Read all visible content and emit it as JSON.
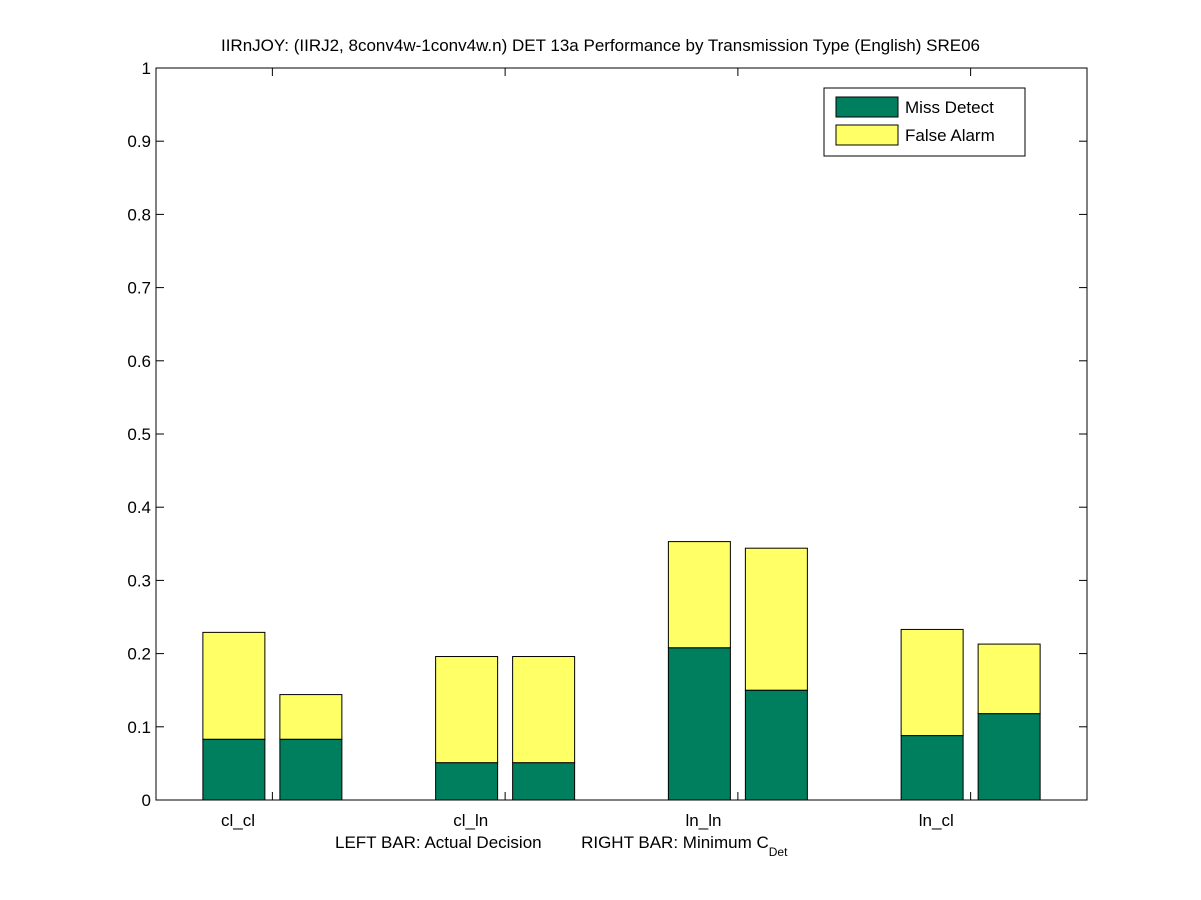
{
  "chart_data": {
    "type": "bar",
    "stacked": true,
    "title": "IIRnJOY: (IIRJ2, 8conv4w-1conv4w.n) DET 13a Performance by Transmission Type (English) SRE06",
    "xlabel_left": "LEFT BAR: Actual Decision",
    "xlabel_right": "RIGHT BAR: Minimum C",
    "xlabel_right_sub": "Det",
    "ylabel": "",
    "ylim": [
      0,
      1
    ],
    "yticks": [
      "0",
      "0.1",
      "0.2",
      "0.3",
      "0.4",
      "0.5",
      "0.6",
      "0.7",
      "0.8",
      "0.9",
      "1"
    ],
    "categories": [
      "cl_cl",
      "cl_ln",
      "ln_ln",
      "ln_cl"
    ],
    "bars_per_category": [
      "Actual Decision",
      "Minimum C_Det"
    ],
    "series": [
      {
        "name": "Miss Detect",
        "color": "#007f5f",
        "values": [
          [
            0.083,
            0.083
          ],
          [
            0.051,
            0.051
          ],
          [
            0.208,
            0.15
          ],
          [
            0.088,
            0.118
          ]
        ]
      },
      {
        "name": "False Alarm",
        "color": "#ffff66",
        "values": [
          [
            0.146,
            0.061
          ],
          [
            0.145,
            0.145
          ],
          [
            0.145,
            0.194
          ],
          [
            0.145,
            0.095
          ]
        ]
      }
    ],
    "legend": {
      "entries": [
        "Miss Detect",
        "False Alarm"
      ],
      "position": "top-right"
    },
    "grid": false
  }
}
